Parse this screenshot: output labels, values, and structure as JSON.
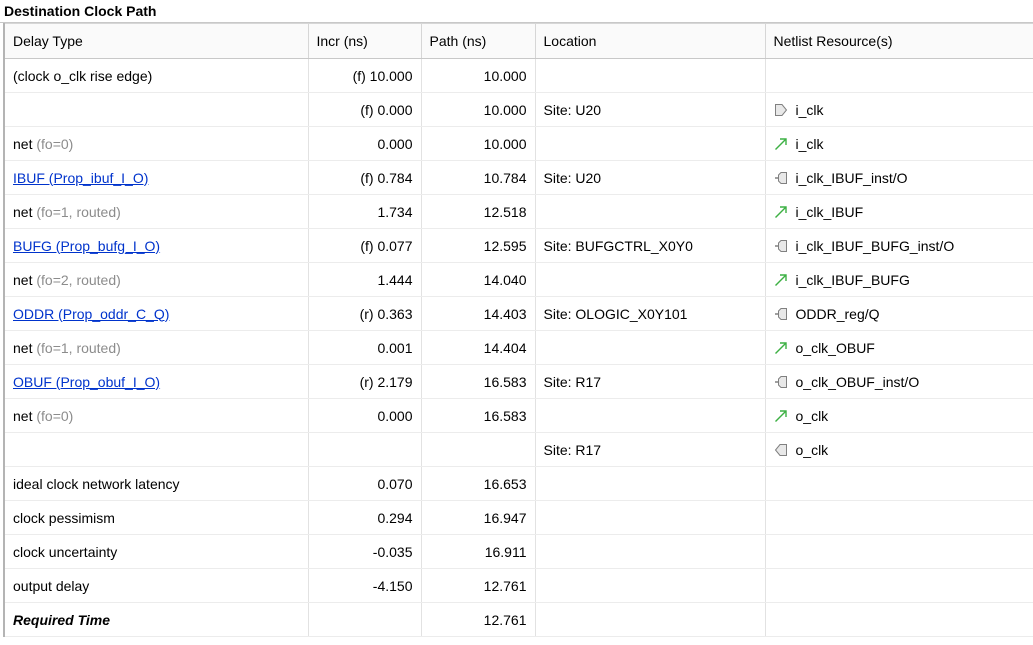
{
  "section_title": "Destination Clock Path",
  "columns": {
    "delay_type": "Delay Type",
    "incr": "Incr (ns)",
    "path": "Path (ns)",
    "location": "Location",
    "netlist": "Netlist Resource(s)"
  },
  "rows": [
    {
      "type_main": "(clock o_clk rise edge)",
      "type_suffix": "",
      "type_style": "plain",
      "incr": "(f) 10.000",
      "path": "10.000",
      "location": "",
      "resource": "",
      "icon": ""
    },
    {
      "type_main": "",
      "type_suffix": "",
      "type_style": "plain",
      "incr": "(f) 0.000",
      "path": "10.000",
      "location": "Site: U20",
      "resource": "i_clk",
      "icon": "input-port-icon"
    },
    {
      "type_main": "net",
      "type_suffix": " (fo=0)",
      "type_style": "net",
      "incr": "0.000",
      "path": "10.000",
      "location": "",
      "resource": "i_clk",
      "icon": "net-arrow-icon"
    },
    {
      "type_main": "IBUF (Prop_ibuf_I_O)",
      "type_suffix": "",
      "type_style": "link",
      "incr": "(f) 0.784",
      "path": "10.784",
      "location": "Site: U20",
      "resource": "i_clk_IBUF_inst/O",
      "icon": "cell-pin-icon"
    },
    {
      "type_main": "net",
      "type_suffix": " (fo=1, routed)",
      "type_style": "net",
      "incr": "1.734",
      "path": "12.518",
      "location": "",
      "resource": "i_clk_IBUF",
      "icon": "net-arrow-icon"
    },
    {
      "type_main": "BUFG (Prop_bufg_I_O)",
      "type_suffix": "",
      "type_style": "link",
      "incr": "(f) 0.077",
      "path": "12.595",
      "location": "Site: BUFGCTRL_X0Y0",
      "resource": "i_clk_IBUF_BUFG_inst/O",
      "icon": "cell-pin-icon"
    },
    {
      "type_main": "net",
      "type_suffix": " (fo=2, routed)",
      "type_style": "net",
      "incr": "1.444",
      "path": "14.040",
      "location": "",
      "resource": "i_clk_IBUF_BUFG",
      "icon": "net-arrow-icon"
    },
    {
      "type_main": "ODDR (Prop_oddr_C_Q)",
      "type_suffix": "",
      "type_style": "link",
      "incr": "(r) 0.363",
      "path": "14.403",
      "location": "Site: OLOGIC_X0Y101",
      "resource": "ODDR_reg/Q",
      "icon": "cell-pin-icon"
    },
    {
      "type_main": "net",
      "type_suffix": " (fo=1, routed)",
      "type_style": "net",
      "incr": "0.001",
      "path": "14.404",
      "location": "",
      "resource": "o_clk_OBUF",
      "icon": "net-arrow-icon"
    },
    {
      "type_main": "OBUF (Prop_obuf_I_O)",
      "type_suffix": "",
      "type_style": "link",
      "incr": "(r) 2.179",
      "path": "16.583",
      "location": "Site: R17",
      "resource": "o_clk_OBUF_inst/O",
      "icon": "cell-pin-icon"
    },
    {
      "type_main": "net",
      "type_suffix": " (fo=0)",
      "type_style": "net",
      "incr": "0.000",
      "path": "16.583",
      "location": "",
      "resource": "o_clk",
      "icon": "net-arrow-icon"
    },
    {
      "type_main": "",
      "type_suffix": "",
      "type_style": "plain",
      "incr": "",
      "path": "",
      "location": "Site: R17",
      "resource": "o_clk",
      "icon": "output-port-icon"
    },
    {
      "type_main": "ideal clock network latency",
      "type_suffix": "",
      "type_style": "plain",
      "incr": "0.070",
      "path": "16.653",
      "location": "",
      "resource": "",
      "icon": ""
    },
    {
      "type_main": "clock pessimism",
      "type_suffix": "",
      "type_style": "plain",
      "incr": "0.294",
      "path": "16.947",
      "location": "",
      "resource": "",
      "icon": ""
    },
    {
      "type_main": "clock uncertainty",
      "type_suffix": "",
      "type_style": "plain",
      "incr": "-0.035",
      "path": "16.911",
      "location": "",
      "resource": "",
      "icon": ""
    },
    {
      "type_main": "output delay",
      "type_suffix": "",
      "type_style": "plain",
      "incr": "-4.150",
      "path": "12.761",
      "location": "",
      "resource": "",
      "icon": ""
    },
    {
      "type_main": "Required Time",
      "type_suffix": "",
      "type_style": "bold",
      "incr": "",
      "path": "12.761",
      "location": "",
      "resource": "",
      "icon": ""
    }
  ],
  "colors": {
    "link": "#0033cc",
    "muted": "#8c8c8c",
    "net_arrow": "#3cb043",
    "icon_stroke": "#808080",
    "icon_fill": "#e8e8e8"
  }
}
